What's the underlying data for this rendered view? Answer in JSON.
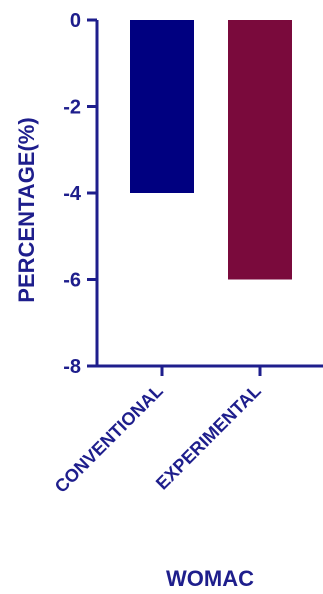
{
  "chart_data": {
    "type": "bar",
    "categories": [
      "CONVENTIONAL",
      "EXPERIMENTAL"
    ],
    "values": [
      -4,
      -6
    ],
    "bar_colors": [
      "#000080",
      "#7a0a3c"
    ],
    "ylabel": "PERCENTAGE(%)",
    "xlabel": "WOMAC",
    "ylim": [
      -8,
      0
    ],
    "yticks": [
      0,
      -2,
      -4,
      -6,
      -8
    ],
    "ytick_labels": [
      "0",
      "-2",
      "-4",
      "-6",
      "-8"
    ],
    "axis_color": "#1e1e8c",
    "grid": false,
    "legend": "none"
  }
}
